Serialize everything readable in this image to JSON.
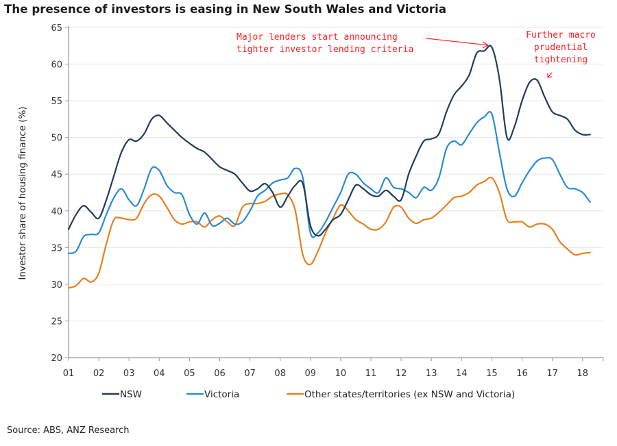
{
  "chart_data": {
    "type": "line",
    "title": "The presence of investors is easing in New South Wales and Victoria",
    "xlabel": "",
    "ylabel": "Investor share of housing finance (%)",
    "ylim": [
      20,
      65
    ],
    "yticks": [
      "20",
      "25",
      "30",
      "35",
      "40",
      "45",
      "50",
      "55",
      "60",
      "65"
    ],
    "ytick_values": [
      20,
      25,
      30,
      35,
      40,
      45,
      50,
      55,
      60,
      65
    ],
    "xlim": [
      2001,
      2018.9
    ],
    "xtick_labels": [
      "01",
      "02",
      "03",
      "04",
      "05",
      "06",
      "07",
      "08",
      "09",
      "10",
      "11",
      "12",
      "13",
      "14",
      "15",
      "16",
      "17",
      "18"
    ],
    "xtick_values": [
      2001,
      2002,
      2003,
      2004,
      2005,
      2006,
      2007,
      2008,
      2009,
      2010,
      2011,
      2012,
      2013,
      2014,
      2015,
      2016,
      2017,
      2018
    ],
    "grid": true,
    "legend_position": "bottom",
    "series": [
      {
        "name": "NSW",
        "color": "#1f3d5c",
        "x": [
          2001.0,
          2001.25,
          2001.5,
          2001.75,
          2002.0,
          2002.25,
          2002.5,
          2002.75,
          2003.0,
          2003.25,
          2003.5,
          2003.75,
          2004.0,
          2004.25,
          2004.5,
          2004.75,
          2005.0,
          2005.25,
          2005.5,
          2005.75,
          2006.0,
          2006.25,
          2006.5,
          2006.75,
          2007.0,
          2007.25,
          2007.5,
          2007.75,
          2008.0,
          2008.25,
          2008.5,
          2008.75,
          2009.0,
          2009.25,
          2009.5,
          2009.75,
          2010.0,
          2010.25,
          2010.5,
          2010.75,
          2011.0,
          2011.25,
          2011.5,
          2011.75,
          2012.0,
          2012.25,
          2012.5,
          2012.75,
          2013.0,
          2013.25,
          2013.5,
          2013.75,
          2014.0,
          2014.25,
          2014.5,
          2014.75,
          2015.0,
          2015.25,
          2015.5,
          2015.75,
          2016.0,
          2016.25,
          2016.5,
          2016.75,
          2017.0,
          2017.25,
          2017.5,
          2017.75,
          2018.0,
          2018.25
        ],
        "values": [
          37.5,
          39.5,
          40.7,
          39.8,
          39.0,
          41.5,
          44.8,
          48.0,
          49.7,
          49.5,
          50.5,
          52.5,
          53.0,
          52.0,
          51.0,
          50.0,
          49.2,
          48.5,
          48.0,
          47.0,
          46.0,
          45.5,
          45.0,
          43.8,
          42.7,
          43.0,
          43.7,
          42.5,
          40.5,
          42.0,
          43.5,
          43.7,
          38.0,
          36.6,
          37.5,
          38.8,
          39.5,
          41.5,
          43.5,
          43.0,
          42.2,
          42.0,
          42.8,
          42.0,
          41.5,
          45.0,
          47.5,
          49.5,
          49.8,
          50.5,
          53.5,
          55.8,
          57.0,
          58.5,
          61.5,
          61.8,
          62.3,
          58.0,
          50.0,
          51.5,
          55.0,
          57.5,
          57.8,
          55.5,
          53.5,
          53.0,
          52.5,
          51.0,
          50.4,
          50.4
        ]
      },
      {
        "name": "Victoria",
        "color": "#2a8ad4",
        "x": [
          2001.0,
          2001.25,
          2001.5,
          2001.75,
          2002.0,
          2002.25,
          2002.5,
          2002.75,
          2003.0,
          2003.25,
          2003.5,
          2003.75,
          2004.0,
          2004.25,
          2004.5,
          2004.75,
          2005.0,
          2005.25,
          2005.5,
          2005.75,
          2006.0,
          2006.25,
          2006.5,
          2006.75,
          2007.0,
          2007.25,
          2007.5,
          2007.75,
          2008.0,
          2008.25,
          2008.5,
          2008.75,
          2009.0,
          2009.25,
          2009.5,
          2009.75,
          2010.0,
          2010.25,
          2010.5,
          2010.75,
          2011.0,
          2011.25,
          2011.5,
          2011.75,
          2012.0,
          2012.25,
          2012.5,
          2012.75,
          2013.0,
          2013.25,
          2013.5,
          2013.75,
          2014.0,
          2014.25,
          2014.5,
          2014.75,
          2015.0,
          2015.25,
          2015.5,
          2015.75,
          2016.0,
          2016.25,
          2016.5,
          2016.75,
          2017.0,
          2017.25,
          2017.5,
          2017.75,
          2018.0,
          2018.25
        ],
        "values": [
          34.2,
          34.5,
          36.5,
          36.8,
          37.0,
          39.5,
          41.8,
          43.0,
          41.5,
          40.7,
          43.0,
          45.8,
          45.5,
          43.5,
          42.5,
          42.2,
          39.5,
          38.2,
          39.7,
          38.0,
          38.3,
          39.0,
          38.2,
          38.5,
          40.0,
          42.0,
          42.8,
          43.8,
          44.2,
          44.5,
          45.8,
          44.5,
          37.0,
          37.0,
          38.5,
          40.5,
          42.5,
          45.0,
          45.0,
          43.8,
          43.0,
          42.5,
          44.5,
          43.2,
          43.0,
          42.5,
          41.8,
          43.2,
          42.8,
          44.5,
          48.5,
          49.5,
          49.0,
          50.5,
          52.0,
          52.8,
          53.2,
          48.0,
          43.0,
          42.0,
          43.8,
          45.5,
          46.8,
          47.2,
          47.0,
          45.0,
          43.2,
          43.0,
          42.5,
          41.2
        ]
      },
      {
        "name": "Other states/territories (ex NSW and Victoria)",
        "color": "#e87f1e",
        "x": [
          2001.0,
          2001.25,
          2001.5,
          2001.75,
          2002.0,
          2002.25,
          2002.5,
          2002.75,
          2003.0,
          2003.25,
          2003.5,
          2003.75,
          2004.0,
          2004.25,
          2004.5,
          2004.75,
          2005.0,
          2005.25,
          2005.5,
          2005.75,
          2006.0,
          2006.25,
          2006.5,
          2006.75,
          2007.0,
          2007.25,
          2007.5,
          2007.75,
          2008.0,
          2008.25,
          2008.5,
          2008.75,
          2009.0,
          2009.25,
          2009.5,
          2009.75,
          2010.0,
          2010.25,
          2010.5,
          2010.75,
          2011.0,
          2011.25,
          2011.5,
          2011.75,
          2012.0,
          2012.25,
          2012.5,
          2012.75,
          2013.0,
          2013.25,
          2013.5,
          2013.75,
          2014.0,
          2014.25,
          2014.5,
          2014.75,
          2015.0,
          2015.25,
          2015.5,
          2015.75,
          2016.0,
          2016.25,
          2016.5,
          2016.75,
          2017.0,
          2017.25,
          2017.5,
          2017.75,
          2018.0,
          2018.25
        ],
        "values": [
          29.5,
          29.8,
          30.8,
          30.3,
          31.5,
          35.5,
          38.8,
          39.0,
          38.8,
          39.0,
          41.0,
          42.2,
          42.0,
          40.5,
          38.8,
          38.2,
          38.5,
          38.5,
          37.8,
          38.8,
          39.3,
          38.5,
          38.0,
          40.5,
          41.0,
          41.0,
          41.3,
          42.0,
          42.3,
          42.2,
          40.0,
          34.0,
          32.7,
          34.5,
          37.0,
          39.0,
          40.8,
          40.0,
          38.8,
          38.2,
          37.5,
          37.5,
          38.5,
          40.5,
          40.5,
          39.0,
          38.3,
          38.8,
          39.0,
          39.8,
          40.8,
          41.8,
          42.0,
          42.5,
          43.5,
          44.0,
          44.5,
          42.5,
          38.8,
          38.5,
          38.5,
          37.8,
          38.2,
          38.2,
          37.5,
          35.8,
          34.8,
          34.0,
          34.2,
          34.3
        ]
      }
    ],
    "annotations": [
      {
        "lines": [
          "Major lenders start announcing",
          "tighter investor lending criteria"
        ],
        "color": "#ff2020",
        "points_to": {
          "x": 2015.0,
          "y": 62.3
        }
      },
      {
        "lines": [
          "Further macro",
          "prudential",
          "tightening"
        ],
        "color": "#ff2020",
        "points_to": {
          "x": 2016.85,
          "y": 57.8
        }
      }
    ]
  },
  "source": "Source: ABS, ANZ Research"
}
